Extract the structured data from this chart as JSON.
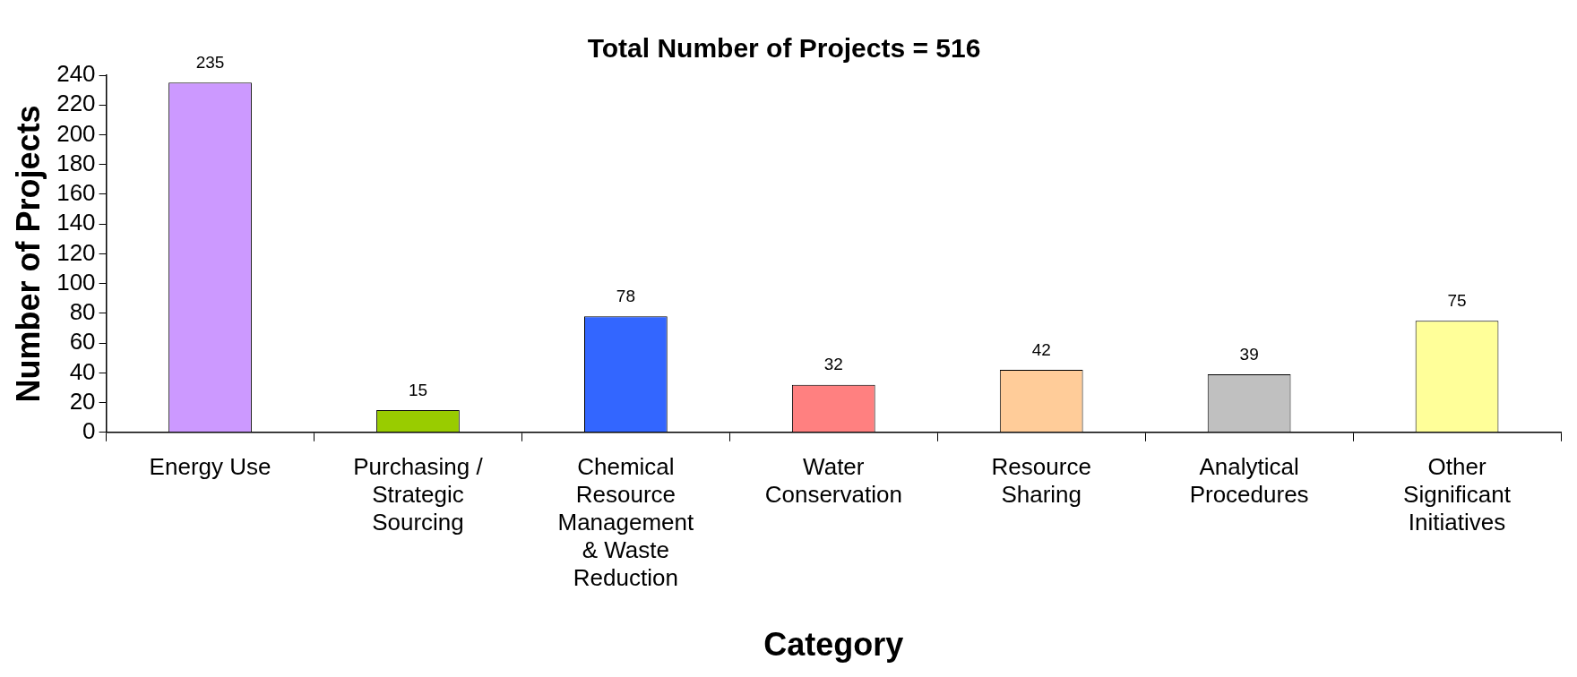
{
  "chart_data": {
    "type": "bar",
    "title": "Total Number of Projects = 516",
    "xlabel": "Category",
    "ylabel": "Number of Projects",
    "categories": [
      "Energy Use",
      "Purchasing / Strategic Sourcing",
      "Chemical Resource Management & Waste Reduction",
      "Water Conservation",
      "Resource Sharing",
      "Analytical Procedures",
      "Other Significant Initiatives"
    ],
    "values": [
      235,
      15,
      78,
      32,
      42,
      39,
      75
    ],
    "colors": [
      "#cc99ff",
      "#99cc00",
      "#3366ff",
      "#ff8080",
      "#ffcc99",
      "#c0c0c0",
      "#ffff99"
    ],
    "ylim": [
      0,
      240
    ],
    "yticks": [
      0,
      20,
      40,
      60,
      80,
      100,
      120,
      140,
      160,
      180,
      200,
      220,
      240
    ],
    "grid": false,
    "legend": false,
    "data_labels": true
  }
}
